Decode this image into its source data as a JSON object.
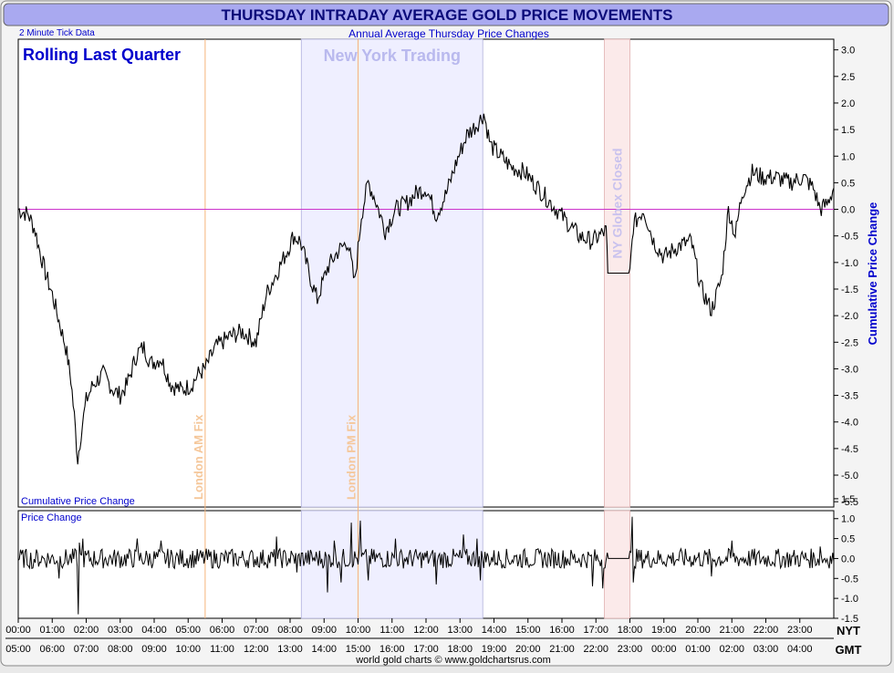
{
  "header": {
    "title": "THURSDAY INTRADAY AVERAGE GOLD PRICE MOVEMENTS",
    "subtitle": "Annual Average Thursday Price Changes",
    "tick_note": "2 Minute Tick Data",
    "period_label": "Rolling Last Quarter",
    "footer": "world gold charts © www.goldchartsrus.com"
  },
  "colors": {
    "title_bg": "#a9a9f0",
    "title_text": "#0b0b7a",
    "accent_blue": "#0000cc",
    "line": "#000000",
    "zero_line": "#cc33cc",
    "fix_line": "#f5b57a",
    "fix_text": "#f5c79a",
    "ny_band": "#efefff",
    "ny_text": "#b9b9ee",
    "globex_band": "#fbeaea",
    "globex_text": "#c9c2ee",
    "plot_bg": "#ffffff"
  },
  "chart_data": [
    {
      "type": "line",
      "panel": "cumulative",
      "series_label": "Cumulative Price Change",
      "ylabel": "Cumulative Price Change",
      "ylim": [
        -5.6,
        3.2
      ],
      "y_ticks": [
        "3.0",
        "2.5",
        "2.0",
        "1.5",
        "1.0",
        "0.5",
        "0.0",
        "-0.5",
        "-1.0",
        "-1.5",
        "-2.0",
        "-2.5",
        "-3.0",
        "-3.5",
        "-4.0",
        "-4.5",
        "-5.0",
        "-5.5"
      ],
      "x_unit": "hours from 00:00 NYT",
      "xlim": [
        0,
        24
      ],
      "points": [
        [
          0,
          0.0
        ],
        [
          0.3,
          -0.1
        ],
        [
          0.5,
          -0.4
        ],
        [
          0.6,
          -0.7
        ],
        [
          0.8,
          -1.2
        ],
        [
          1.0,
          -1.6
        ],
        [
          1.2,
          -2.1
        ],
        [
          1.4,
          -2.6
        ],
        [
          1.55,
          -3.2
        ],
        [
          1.65,
          -3.9
        ],
        [
          1.75,
          -4.7
        ],
        [
          1.85,
          -4.2
        ],
        [
          2.0,
          -3.6
        ],
        [
          2.2,
          -3.3
        ],
        [
          2.5,
          -3.1
        ],
        [
          2.8,
          -3.4
        ],
        [
          3.0,
          -3.5
        ],
        [
          3.2,
          -3.3
        ],
        [
          3.5,
          -2.7
        ],
        [
          3.7,
          -2.6
        ],
        [
          3.9,
          -2.9
        ],
        [
          4.2,
          -2.8
        ],
        [
          4.5,
          -3.3
        ],
        [
          4.8,
          -3.4
        ],
        [
          5.1,
          -3.3
        ],
        [
          5.3,
          -3.1
        ],
        [
          5.5,
          -3.0
        ],
        [
          5.8,
          -2.6
        ],
        [
          6.2,
          -2.4
        ],
        [
          6.6,
          -2.3
        ],
        [
          7.0,
          -2.5
        ],
        [
          7.3,
          -1.6
        ],
        [
          7.6,
          -1.2
        ],
        [
          7.9,
          -0.8
        ],
        [
          8.1,
          -0.5
        ],
        [
          8.3,
          -0.6
        ],
        [
          8.6,
          -1.3
        ],
        [
          8.8,
          -1.7
        ],
        [
          9.1,
          -1.1
        ],
        [
          9.4,
          -0.8
        ],
        [
          9.7,
          -0.6
        ],
        [
          9.9,
          -1.4
        ],
        [
          10.1,
          -0.1
        ],
        [
          10.3,
          0.5
        ],
        [
          10.5,
          0.2
        ],
        [
          10.8,
          -0.4
        ],
        [
          11.1,
          0.0
        ],
        [
          11.4,
          0.1
        ],
        [
          11.7,
          0.3
        ],
        [
          12.0,
          0.4
        ],
        [
          12.3,
          -0.1
        ],
        [
          12.6,
          0.3
        ],
        [
          12.9,
          0.9
        ],
        [
          13.2,
          1.4
        ],
        [
          13.5,
          1.6
        ],
        [
          13.7,
          1.8
        ],
        [
          13.9,
          1.2
        ],
        [
          14.2,
          1.0
        ],
        [
          14.5,
          0.8
        ],
        [
          14.9,
          0.7
        ],
        [
          15.3,
          0.4
        ],
        [
          15.7,
          0.1
        ],
        [
          16.1,
          -0.2
        ],
        [
          16.5,
          -0.5
        ],
        [
          16.9,
          -0.6
        ],
        [
          17.3,
          -0.4
        ],
        [
          17.35,
          -1.2
        ],
        [
          18.0,
          -1.2
        ],
        [
          18.1,
          -0.3
        ],
        [
          18.4,
          0.0
        ],
        [
          18.7,
          -0.6
        ],
        [
          19.0,
          -0.9
        ],
        [
          19.4,
          -0.7
        ],
        [
          19.8,
          -0.6
        ],
        [
          20.1,
          -1.5
        ],
        [
          20.4,
          -1.9
        ],
        [
          20.7,
          -1.3
        ],
        [
          20.9,
          0.0
        ],
        [
          21.1,
          -0.5
        ],
        [
          21.3,
          0.3
        ],
        [
          21.6,
          0.7
        ],
        [
          21.9,
          0.6
        ],
        [
          22.3,
          0.6
        ],
        [
          22.7,
          0.5
        ],
        [
          23.1,
          0.6
        ],
        [
          23.4,
          0.4
        ],
        [
          23.6,
          0.0
        ],
        [
          23.8,
          0.1
        ],
        [
          24.0,
          0.4
        ]
      ]
    },
    {
      "type": "line",
      "panel": "price-change",
      "series_label": "Price Change",
      "ylim": [
        -1.5,
        1.2
      ],
      "y_ticks": [
        "1.5",
        "1.0",
        "0.5",
        "0.0",
        "-0.5",
        "-1.0",
        "-1.5"
      ],
      "xlim": [
        0,
        24
      ],
      "spikes": [
        [
          1.75,
          -1.4
        ],
        [
          1.8,
          0.4
        ],
        [
          0.4,
          -0.25
        ],
        [
          1.2,
          -0.5
        ],
        [
          1.9,
          0.5
        ],
        [
          3.5,
          0.5
        ],
        [
          4.2,
          0.45
        ],
        [
          7.6,
          0.55
        ],
        [
          8.2,
          -0.35
        ],
        [
          9.1,
          -0.85
        ],
        [
          9.3,
          0.45
        ],
        [
          9.5,
          -0.6
        ],
        [
          9.8,
          0.9
        ],
        [
          10.05,
          0.95
        ],
        [
          10.3,
          -0.55
        ],
        [
          11.1,
          0.5
        ],
        [
          12.3,
          -0.65
        ],
        [
          13.1,
          0.6
        ],
        [
          13.5,
          0.5
        ],
        [
          13.6,
          -0.55
        ],
        [
          16.9,
          -0.7
        ],
        [
          17.2,
          -0.75
        ],
        [
          18.05,
          1.05
        ],
        [
          18.1,
          -0.6
        ],
        [
          20.4,
          -0.45
        ],
        [
          21.0,
          0.45
        ],
        [
          23.6,
          0.3
        ]
      ]
    }
  ],
  "x_axis": {
    "nyt_label": "NYT",
    "gmt_label": "GMT",
    "nyt_ticks": [
      "00:00",
      "01:00",
      "02:00",
      "03:00",
      "04:00",
      "05:00",
      "06:00",
      "07:00",
      "08:00",
      "09:00",
      "10:00",
      "11:00",
      "12:00",
      "13:00",
      "14:00",
      "15:00",
      "16:00",
      "17:00",
      "18:00",
      "19:00",
      "20:00",
      "21:00",
      "22:00",
      "23:00"
    ],
    "gmt_ticks": [
      "05:00",
      "06:00",
      "07:00",
      "08:00",
      "09:00",
      "10:00",
      "11:00",
      "12:00",
      "13:00",
      "14:00",
      "15:00",
      "16:00",
      "17:00",
      "18:00",
      "19:00",
      "20:00",
      "21:00",
      "22:00",
      "23:00",
      "00:00",
      "01:00",
      "02:00",
      "03:00",
      "04:00"
    ]
  },
  "annotations": {
    "london_am": {
      "label": "London AM Fix",
      "hour": 5.5
    },
    "london_pm": {
      "label": "London PM Fix",
      "hour": 10.0
    },
    "new_york": {
      "label": "New York Trading",
      "start": 8.33,
      "end": 13.67
    },
    "globex": {
      "label": "NY Globex Closed",
      "start": 17.25,
      "end": 18.0
    }
  }
}
